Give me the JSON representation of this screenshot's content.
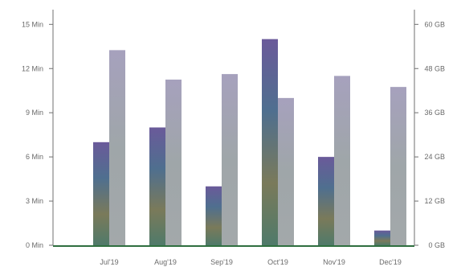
{
  "colors": {
    "minutes_bar": "#5f6f8f",
    "data_bar": "#a9a9b8",
    "axis": "#6f6f6f",
    "baseline": "#2f6f3f",
    "tick_text": "#6a6a6a"
  },
  "chart_data": {
    "type": "bar",
    "categories": [
      "Jul'19",
      "Aug'19",
      "Sep'19",
      "Oct'19",
      "Nov'19",
      "Dec'19"
    ],
    "series": [
      {
        "axis": "left",
        "values": [
          7.0,
          8.0,
          4.0,
          14.0,
          6.0,
          1.0
        ]
      },
      {
        "axis": "right",
        "values": [
          53,
          45,
          46.5,
          40,
          46,
          43
        ]
      }
    ],
    "y_left": {
      "ticks": [
        "0 Min",
        "3 Min",
        "6 Min",
        "9 Min",
        "12 Min",
        "15 Min"
      ],
      "tick_values": [
        0,
        3,
        6,
        9,
        12,
        15
      ],
      "lim": [
        0,
        16
      ]
    },
    "y_right": {
      "ticks": [
        "0 GB",
        "12 GB",
        "24 GB",
        "36 GB",
        "48 GB",
        "60 GB"
      ],
      "tick_values": [
        0,
        12,
        24,
        36,
        48,
        60
      ],
      "lim": [
        0,
        64
      ]
    },
    "grid": false,
    "legend": "none"
  }
}
